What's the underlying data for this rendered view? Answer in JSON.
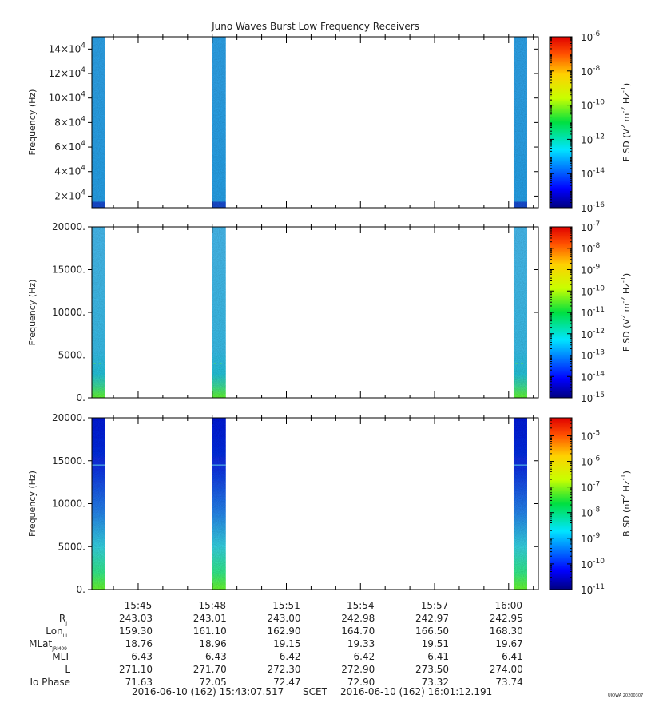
{
  "title": "Juno Waves Burst Low Frequency Receivers",
  "footer": {
    "start": "2016-06-10 (162) 15:43:07.517",
    "scet": "SCET",
    "end": "2016-06-10 (162) 16:01:12.191",
    "credit": "UIOWA 20200307"
  },
  "x_ticks": [
    "15:45",
    "15:48",
    "15:51",
    "15:54",
    "15:57",
    "16:00"
  ],
  "x_range": [
    "15:43:07.517",
    "16:01:12.191"
  ],
  "ephemeris": [
    {
      "label": "R",
      "sub": "J",
      "values": [
        "243.03",
        "243.01",
        "243.00",
        "242.98",
        "242.97",
        "242.95"
      ]
    },
    {
      "label": "Lon",
      "sub": "III",
      "values": [
        "159.30",
        "161.10",
        "162.90",
        "164.70",
        "166.50",
        "168.30"
      ]
    },
    {
      "label": "MLat",
      "sub": "JRM09",
      "values": [
        "18.76",
        "18.96",
        "19.15",
        "19.33",
        "19.51",
        "19.67"
      ]
    },
    {
      "label": "MLT",
      "sub": "",
      "values": [
        "6.43",
        "6.43",
        "6.42",
        "6.42",
        "6.41",
        "6.41"
      ]
    },
    {
      "label": "L",
      "sub": "",
      "values": [
        "271.10",
        "271.70",
        "272.30",
        "272.90",
        "273.50",
        "274.00"
      ]
    },
    {
      "label": "Io Phase",
      "sub": "",
      "values": [
        "71.63",
        "72.05",
        "72.47",
        "72.90",
        "73.32",
        "73.74"
      ]
    }
  ],
  "bursts": [
    {
      "start": "15:43:07",
      "end": "15:43:40"
    },
    {
      "start": "15:48:00",
      "end": "15:48:33"
    },
    {
      "start": "16:00:12",
      "end": "16:00:45"
    }
  ],
  "chart_data": [
    {
      "type": "heatmap",
      "ylabel": "Frequency (Hz)",
      "ylim": [
        10500,
        150000
      ],
      "y_ticks": [
        {
          "value": 20000,
          "mant": "2×10",
          "exp": "4"
        },
        {
          "value": 40000,
          "mant": "4×10",
          "exp": "4"
        },
        {
          "value": 60000,
          "mant": "6×10",
          "exp": "4"
        },
        {
          "value": 80000,
          "mant": "8×10",
          "exp": "4"
        },
        {
          "value": 100000,
          "mant": "10×10",
          "exp": "4"
        },
        {
          "value": 120000,
          "mant": "12×10",
          "exp": "4"
        },
        {
          "value": 140000,
          "mant": "14×10",
          "exp": "4"
        }
      ],
      "colorbar": {
        "label_base": "E SD (V",
        "label_tail": "m",
        "label_end": "Hz",
        "log_range": [
          -16,
          -6
        ],
        "ticks": [
          "-6",
          "-8",
          "-10",
          "-12",
          "-14",
          "-16"
        ]
      }
    },
    {
      "type": "heatmap",
      "ylabel": "Frequency (Hz)",
      "ylim": [
        0,
        20000
      ],
      "y_ticks": [
        {
          "value": 0,
          "label": "0."
        },
        {
          "value": 5000,
          "label": "5000."
        },
        {
          "value": 10000,
          "label": "10000."
        },
        {
          "value": 15000,
          "label": "15000."
        },
        {
          "value": 20000,
          "label": "20000."
        }
      ],
      "colorbar": {
        "label_base": "E SD (V",
        "label_tail": "m",
        "label_end": "Hz",
        "log_range": [
          -15,
          -7
        ],
        "ticks": [
          "-7",
          "-8",
          "-9",
          "-10",
          "-11",
          "-12",
          "-13",
          "-14",
          "-15"
        ]
      }
    },
    {
      "type": "heatmap",
      "ylabel": "Frequency (Hz)",
      "ylim": [
        0,
        20000
      ],
      "y_ticks": [
        {
          "value": 0,
          "label": "0."
        },
        {
          "value": 5000,
          "label": "5000."
        },
        {
          "value": 10000,
          "label": "10000."
        },
        {
          "value": 15000,
          "label": "15000."
        },
        {
          "value": 20000,
          "label": "20000."
        }
      ],
      "colorbar": {
        "label_base": "B SD (nT",
        "label_tail": "",
        "label_end": "Hz",
        "log_range": [
          -11,
          -4.3
        ],
        "ticks": [
          "-5",
          "-6",
          "-7",
          "-8",
          "-9",
          "-10",
          "-11"
        ]
      }
    }
  ]
}
